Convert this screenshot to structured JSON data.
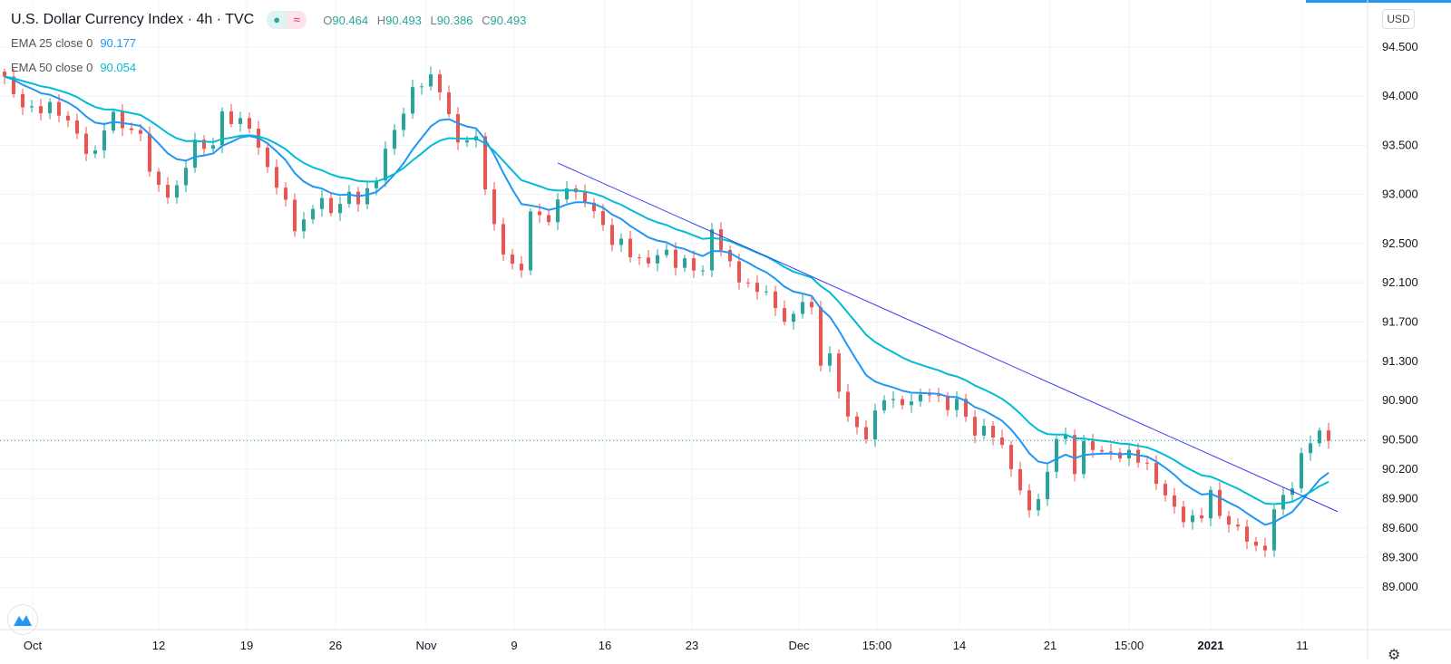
{
  "header": {
    "title": "U.S. Dollar Currency Index · 4h · TVC",
    "open": "90.464",
    "high": "90.493",
    "low": "90.386",
    "close": "90.493",
    "o_label": "O",
    "h_label": "H",
    "l_label": "L",
    "c_label": "C",
    "status_icon": "market-open-dot",
    "mode_icon": "approx-icon"
  },
  "indicators": [
    {
      "label": "EMA 25 close 0",
      "value": "90.177",
      "color": "#2196f3",
      "period": 25
    },
    {
      "label": "EMA 50 close 0",
      "value": "90.054",
      "color": "#00bcd4",
      "period": 50
    }
  ],
  "currency_button": "USD",
  "chart_data": {
    "type": "candlestick",
    "title": "U.S. Dollar Currency Index · 4h · TVC",
    "y_ticks": [
      "94.500",
      "94.000",
      "93.500",
      "93.000",
      "92.500",
      "92.100",
      "91.700",
      "91.300",
      "90.900",
      "90.500",
      "90.200",
      "89.900",
      "89.600",
      "89.300",
      "89.000"
    ],
    "ylim": [
      88.8,
      94.7
    ],
    "x_ticks": [
      "Oct",
      "12",
      "19",
      "26",
      "Nov",
      "9",
      "16",
      "23",
      "Dec",
      "15:00",
      "14",
      "21",
      "15:00",
      "2021",
      "11"
    ],
    "last_price": 90.493,
    "colors": {
      "up": "#26a69a",
      "down": "#ef5350",
      "trendline": "#3a3af0"
    },
    "close_path": [
      [
        0,
        94.2
      ],
      [
        1,
        94.0
      ],
      [
        3,
        93.85
      ],
      [
        5,
        93.9
      ],
      [
        7,
        93.75
      ],
      [
        9,
        93.45
      ],
      [
        10,
        93.4
      ],
      [
        11.5,
        93.85
      ],
      [
        13,
        93.7
      ],
      [
        15,
        93.6
      ],
      [
        16.5,
        93.1
      ],
      [
        17.5,
        93.0
      ],
      [
        19,
        93.05
      ],
      [
        20,
        93.3
      ],
      [
        21,
        93.55
      ],
      [
        22.5,
        93.4
      ],
      [
        24,
        93.8
      ],
      [
        25.5,
        93.75
      ],
      [
        27,
        93.7
      ],
      [
        28.5,
        93.35
      ],
      [
        30,
        93.1
      ],
      [
        31.5,
        92.8
      ],
      [
        32.5,
        92.55
      ],
      [
        33.5,
        92.85
      ],
      [
        35,
        92.95
      ],
      [
        36,
        92.8
      ],
      [
        37.5,
        93.0
      ],
      [
        39,
        92.95
      ],
      [
        40.5,
        93.05
      ],
      [
        41.5,
        93.3
      ],
      [
        42.5,
        93.6
      ],
      [
        43.5,
        93.7
      ],
      [
        44.5,
        94.0
      ],
      [
        45.5,
        94.1
      ],
      [
        46.5,
        94.2
      ],
      [
        47.5,
        94.15
      ],
      [
        48.5,
        94.0
      ],
      [
        49.5,
        93.6
      ],
      [
        50.5,
        93.45
      ],
      [
        51.5,
        93.7
      ],
      [
        52.5,
        93.4
      ],
      [
        53.5,
        92.8
      ],
      [
        54.5,
        92.5
      ],
      [
        55.5,
        92.35
      ],
      [
        56.5,
        92.2
      ],
      [
        57.5,
        92.25
      ],
      [
        58,
        92.85
      ],
      [
        59.5,
        92.7
      ],
      [
        61,
        92.9
      ],
      [
        62,
        93.1
      ],
      [
        63.5,
        92.95
      ],
      [
        65,
        92.85
      ],
      [
        66.5,
        92.55
      ],
      [
        68,
        92.5
      ],
      [
        69.5,
        92.35
      ],
      [
        71,
        92.3
      ],
      [
        72.5,
        92.45
      ],
      [
        74,
        92.3
      ],
      [
        75.5,
        92.3
      ],
      [
        77,
        92.2
      ],
      [
        78,
        92.65
      ],
      [
        79,
        92.45
      ],
      [
        80.5,
        92.2
      ],
      [
        82,
        92.05
      ],
      [
        83.5,
        92.05
      ],
      [
        85,
        91.85
      ],
      [
        86.5,
        91.65
      ],
      [
        88,
        91.95
      ],
      [
        89,
        91.8
      ],
      [
        90,
        91.3
      ],
      [
        91,
        91.35
      ],
      [
        92,
        91.0
      ],
      [
        93,
        90.75
      ],
      [
        94,
        90.6
      ],
      [
        95,
        90.55
      ],
      [
        96,
        90.75
      ],
      [
        97,
        90.95
      ],
      [
        98.5,
        90.85
      ],
      [
        100,
        90.9
      ],
      [
        101.5,
        90.95
      ],
      [
        102.5,
        91.05
      ],
      [
        103.5,
        90.75
      ],
      [
        104.5,
        90.95
      ],
      [
        106,
        90.75
      ],
      [
        107,
        90.55
      ],
      [
        108.5,
        90.65
      ],
      [
        110,
        90.4
      ],
      [
        111,
        90.25
      ],
      [
        112,
        89.95
      ],
      [
        113,
        89.8
      ],
      [
        114.5,
        89.95
      ],
      [
        116,
        90.55
      ],
      [
        117,
        90.5
      ],
      [
        118,
        90.2
      ],
      [
        119,
        90.45
      ],
      [
        120.5,
        90.4
      ],
      [
        122,
        90.35
      ],
      [
        124,
        90.35
      ],
      [
        125.5,
        90.3
      ],
      [
        126.5,
        90.15
      ],
      [
        127.5,
        90.0
      ],
      [
        129,
        89.8
      ],
      [
        130.5,
        89.65
      ],
      [
        132,
        89.75
      ],
      [
        133,
        89.95
      ],
      [
        134.5,
        89.65
      ],
      [
        136,
        89.6
      ],
      [
        137.5,
        89.45
      ],
      [
        138.5,
        89.3
      ],
      [
        139.5,
        89.55
      ],
      [
        140.5,
        89.95
      ],
      [
        142,
        90.0
      ],
      [
        143,
        90.35
      ],
      [
        144,
        90.5
      ],
      [
        145,
        90.55
      ],
      [
        146,
        90.49
      ]
    ],
    "trendline": {
      "start": [
        61,
        93.32
      ],
      "end": [
        147,
        89.77
      ]
    }
  }
}
